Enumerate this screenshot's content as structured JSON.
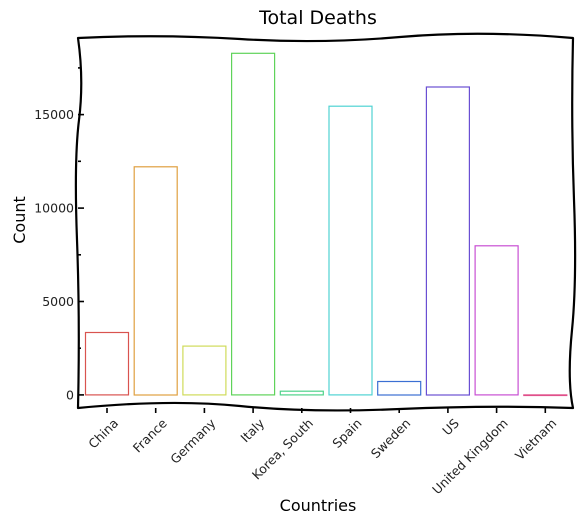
{
  "chart_data": {
    "type": "bar",
    "title": "Total Deaths",
    "xlabel": "Countries",
    "ylabel": "Count",
    "categories": [
      "China",
      "France",
      "Germany",
      "Italy",
      "Korea, South",
      "Spain",
      "Sweden",
      "US",
      "United Kingdom",
      "Vietnam"
    ],
    "values": [
      3340,
      12210,
      2610,
      18280,
      200,
      15450,
      720,
      16480,
      7980,
      0
    ],
    "colors": [
      "#d9534f",
      "#e0a040",
      "#cfdb5a",
      "#5fd35a",
      "#4fd38a",
      "#4fd3d3",
      "#3b6fd3",
      "#6a4fd3",
      "#c84fd3",
      "#e0508a"
    ],
    "yticks": [
      0,
      5000,
      10000,
      15000
    ],
    "ylim": [
      -700,
      19100
    ],
    "grid": false,
    "legend": "none"
  }
}
